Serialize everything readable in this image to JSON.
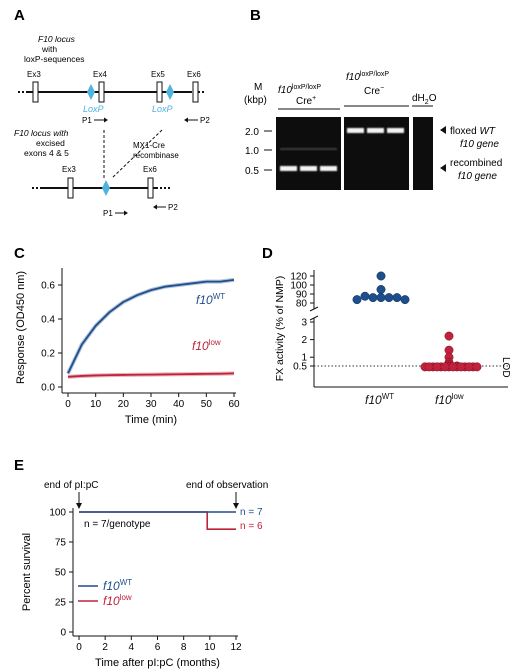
{
  "panels": {
    "A": {
      "letter": "A",
      "locus_label_1": "F10 locus",
      "locus_label_2": "with",
      "locus_label_3": "loxP-sequences",
      "excised_label_1": "F10 locus with",
      "excised_label_2": "excised",
      "excised_label_3": "exons 4 & 5",
      "exons_top": [
        "Ex3",
        "Ex4",
        "Ex5",
        "Ex6"
      ],
      "exons_bottom": [
        "Ex3",
        "Ex6"
      ],
      "loxp": "LoxP",
      "primer1": "P1",
      "primer2": "P2",
      "cre_1": "MX1-Cre",
      "cre_2": "recombinase",
      "loxp_color": "#4fb3e0"
    },
    "B": {
      "letter": "B",
      "m_label": "M",
      "kbp_label": "(kbp)",
      "group1_genotype": "f10loxP/loxP",
      "group1_cre": "Cre+",
      "group2_genotype": "f10loxP/loxP",
      "group2_cre": "Cre−",
      "water": "dH2O",
      "ladder": [
        "2.0",
        "1.0",
        "0.5"
      ],
      "floxed_1": "floxed WT",
      "floxed_2": "f10 gene",
      "recomb_1": "recombined",
      "recomb_2": "f10 gene"
    },
    "C": {
      "letter": "C"
    },
    "D": {
      "letter": "D"
    },
    "E": {
      "letter": "E",
      "end_pipc": "end of pI:pC",
      "end_obs": "end of observation",
      "n_genotype": "n = 7/genotype",
      "n_wt": "n = 7",
      "n_low": "n = 6"
    }
  },
  "colors": {
    "wt": "#1f4e8c",
    "low": "#c0223b"
  },
  "chart_data": [
    {
      "panel": "C",
      "type": "line",
      "xlabel": "Time (min)",
      "ylabel": "Response (OD450 nm)",
      "xlim": [
        0,
        60
      ],
      "ylim": [
        0,
        0.7
      ],
      "xticks": [
        0,
        10,
        20,
        30,
        40,
        50,
        60
      ],
      "yticks": [
        0.0,
        0.2,
        0.4,
        0.6
      ],
      "series": [
        {
          "name": "f10WT",
          "x": [
            0,
            5,
            10,
            15,
            20,
            25,
            30,
            35,
            40,
            45,
            50,
            55,
            60
          ],
          "values": [
            0.08,
            0.25,
            0.36,
            0.44,
            0.5,
            0.54,
            0.57,
            0.59,
            0.6,
            0.61,
            0.62,
            0.62,
            0.63
          ]
        },
        {
          "name": "f10low",
          "x": [
            0,
            5,
            10,
            15,
            20,
            25,
            30,
            35,
            40,
            45,
            50,
            55,
            60
          ],
          "values": [
            0.06,
            0.065,
            0.068,
            0.07,
            0.071,
            0.072,
            0.073,
            0.074,
            0.075,
            0.076,
            0.077,
            0.078,
            0.08
          ]
        }
      ]
    },
    {
      "panel": "D",
      "type": "scatter",
      "ylabel": "FX activity (% of NMP)",
      "categories": [
        "f10WT",
        "f10low"
      ],
      "yticks_upper": [
        80,
        90,
        100,
        120
      ],
      "yticks_lower": [
        0.5,
        1,
        2,
        3
      ],
      "lod": 0.5,
      "lod_label": "LOD",
      "series": [
        {
          "name": "f10WT",
          "values": [
            120,
            100,
            90,
            88,
            88,
            88,
            88,
            85,
            85
          ]
        },
        {
          "name": "f10low",
          "values": [
            2.2,
            1.4,
            1.0,
            0.7,
            0.6,
            0.5,
            0.5,
            0.45,
            0.45,
            0.45,
            0.45,
            0.45,
            0.45,
            0.45,
            0.45,
            0.45,
            0.45,
            0.45,
            0.45,
            0.45,
            0.45
          ]
        }
      ]
    },
    {
      "panel": "E",
      "type": "line",
      "xlabel": "Time after pI:pC (months)",
      "ylabel": "Percent survival",
      "xlim": [
        0,
        12
      ],
      "ylim": [
        0,
        100
      ],
      "xticks": [
        0,
        2,
        4,
        6,
        8,
        10,
        12
      ],
      "yticks": [
        0,
        25,
        50,
        75,
        100
      ],
      "series": [
        {
          "name": "f10WT",
          "x": [
            0,
            12
          ],
          "values": [
            100,
            100
          ]
        },
        {
          "name": "f10low",
          "x": [
            0,
            9.8,
            9.8,
            12
          ],
          "values": [
            100,
            100,
            85.7,
            85.7
          ]
        }
      ],
      "legend": "bottom-left"
    }
  ]
}
